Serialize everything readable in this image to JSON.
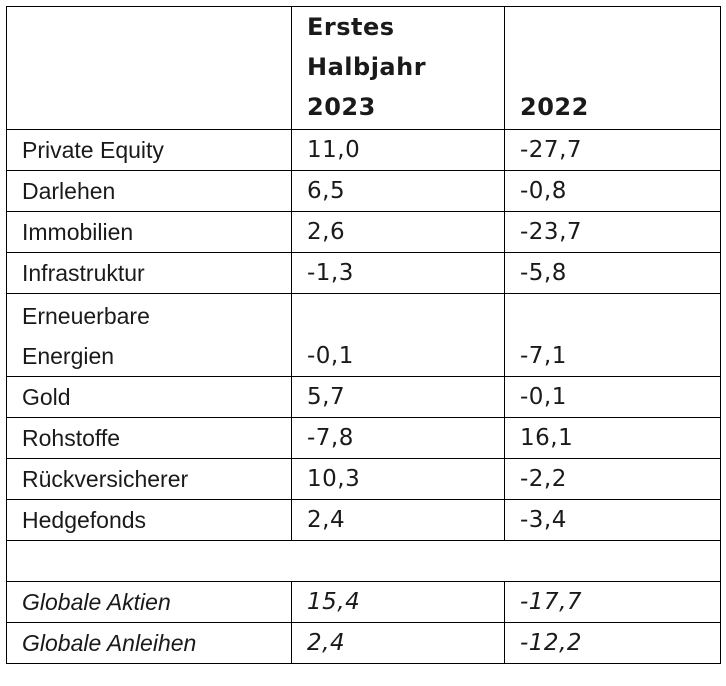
{
  "header": {
    "col1": "",
    "col2_lines": [
      "Erstes",
      "Halbjahr",
      "2023"
    ],
    "col3": "2022"
  },
  "rows": [
    {
      "label_lines": [
        "Private Equity"
      ],
      "h1_2023": "11,0",
      "y2022": "-27,7"
    },
    {
      "label_lines": [
        "Darlehen"
      ],
      "h1_2023": "6,5",
      "y2022": "-0,8"
    },
    {
      "label_lines": [
        "Immobilien"
      ],
      "h1_2023": "2,6",
      "y2022": "-23,7"
    },
    {
      "label_lines": [
        "Infrastruktur"
      ],
      "h1_2023": "-1,3",
      "y2022": "-5,8"
    },
    {
      "label_lines": [
        "Erneuerbare",
        "Energien"
      ],
      "h1_2023": "-0,1",
      "y2022": "-7,1"
    },
    {
      "label_lines": [
        "Gold"
      ],
      "h1_2023": "5,7",
      "y2022": "-0,1"
    },
    {
      "label_lines": [
        "Rohstoffe"
      ],
      "h1_2023": "-7,8",
      "y2022": "16,1"
    },
    {
      "label_lines": [
        "Rückversicherer"
      ],
      "h1_2023": "10,3",
      "y2022": "-2,2"
    },
    {
      "label_lines": [
        "Hedgefonds"
      ],
      "h1_2023": "2,4",
      "y2022": "-3,4"
    }
  ],
  "global_rows": [
    {
      "label": "Globale Aktien",
      "h1_2023": "15,4",
      "y2022": "-17,7"
    },
    {
      "label": "Globale Anleihen",
      "h1_2023": "2,4",
      "y2022": "-12,2"
    }
  ]
}
